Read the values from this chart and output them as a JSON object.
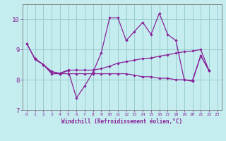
{
  "xlabel": "Windchill (Refroidissement éolien,°C)",
  "xlim": [
    -0.5,
    23.5
  ],
  "ylim": [
    7,
    10.5
  ],
  "yticks": [
    7,
    8,
    9,
    10
  ],
  "xticks": [
    0,
    1,
    2,
    3,
    4,
    5,
    6,
    7,
    8,
    9,
    10,
    11,
    12,
    13,
    14,
    15,
    16,
    17,
    18,
    19,
    20,
    21,
    22,
    23
  ],
  "background_color": "#c5edf0",
  "grid_color": "#99cccc",
  "line_color": "#882299",
  "y1": [
    9.2,
    8.7,
    8.5,
    8.2,
    8.2,
    8.3,
    7.4,
    7.8,
    8.25,
    8.9,
    10.05,
    10.05,
    9.3,
    9.6,
    9.9,
    9.5,
    10.2,
    9.5,
    9.3,
    8.0,
    7.95,
    8.8,
    8.3,
    null
  ],
  "y2": [
    null,
    8.7,
    8.5,
    8.25,
    8.22,
    8.32,
    8.32,
    8.32,
    8.32,
    8.37,
    8.45,
    8.55,
    8.6,
    8.65,
    8.7,
    8.72,
    8.78,
    8.83,
    8.88,
    8.93,
    8.95,
    9.0,
    8.3,
    null
  ],
  "y3": [
    9.2,
    8.67,
    8.5,
    8.28,
    8.2,
    8.2,
    8.2,
    8.2,
    8.2,
    8.2,
    8.2,
    8.2,
    8.2,
    8.15,
    8.1,
    8.1,
    8.05,
    8.05,
    8.0,
    8.0,
    7.98,
    8.8,
    8.3,
    null
  ]
}
